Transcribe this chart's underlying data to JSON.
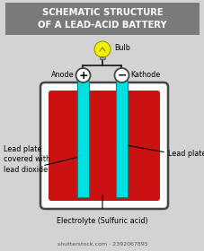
{
  "bg_color": "#d3d3d3",
  "title_box_color": "#7a7a7a",
  "title_text": "SCHEMATIC STRUCTURE\nOF A LEAD-ACID BATTERY",
  "title_color": "#ffffff",
  "battery_fill": "#ffffff",
  "battery_outline": "#444444",
  "liquid_color": "#cc1111",
  "electrode_color": "#00e0e0",
  "electrode_outline": "#008888",
  "wire_color": "#222222",
  "bulb_color": "#f0f000",
  "bulb_outline": "#999900",
  "bulb_base_color": "#999999",
  "anode_label": "Anode",
  "kathode_label": "Kathode",
  "bulb_label": "Bulb",
  "left_label": "Lead plate\ncovered with\nlead dioxide",
  "right_label": "Lead plate",
  "bottom_label": "Electrolyte (Sulfuric acid)",
  "label_fs": 5.8,
  "title_fs": 7.2,
  "symbol_fs": 9
}
